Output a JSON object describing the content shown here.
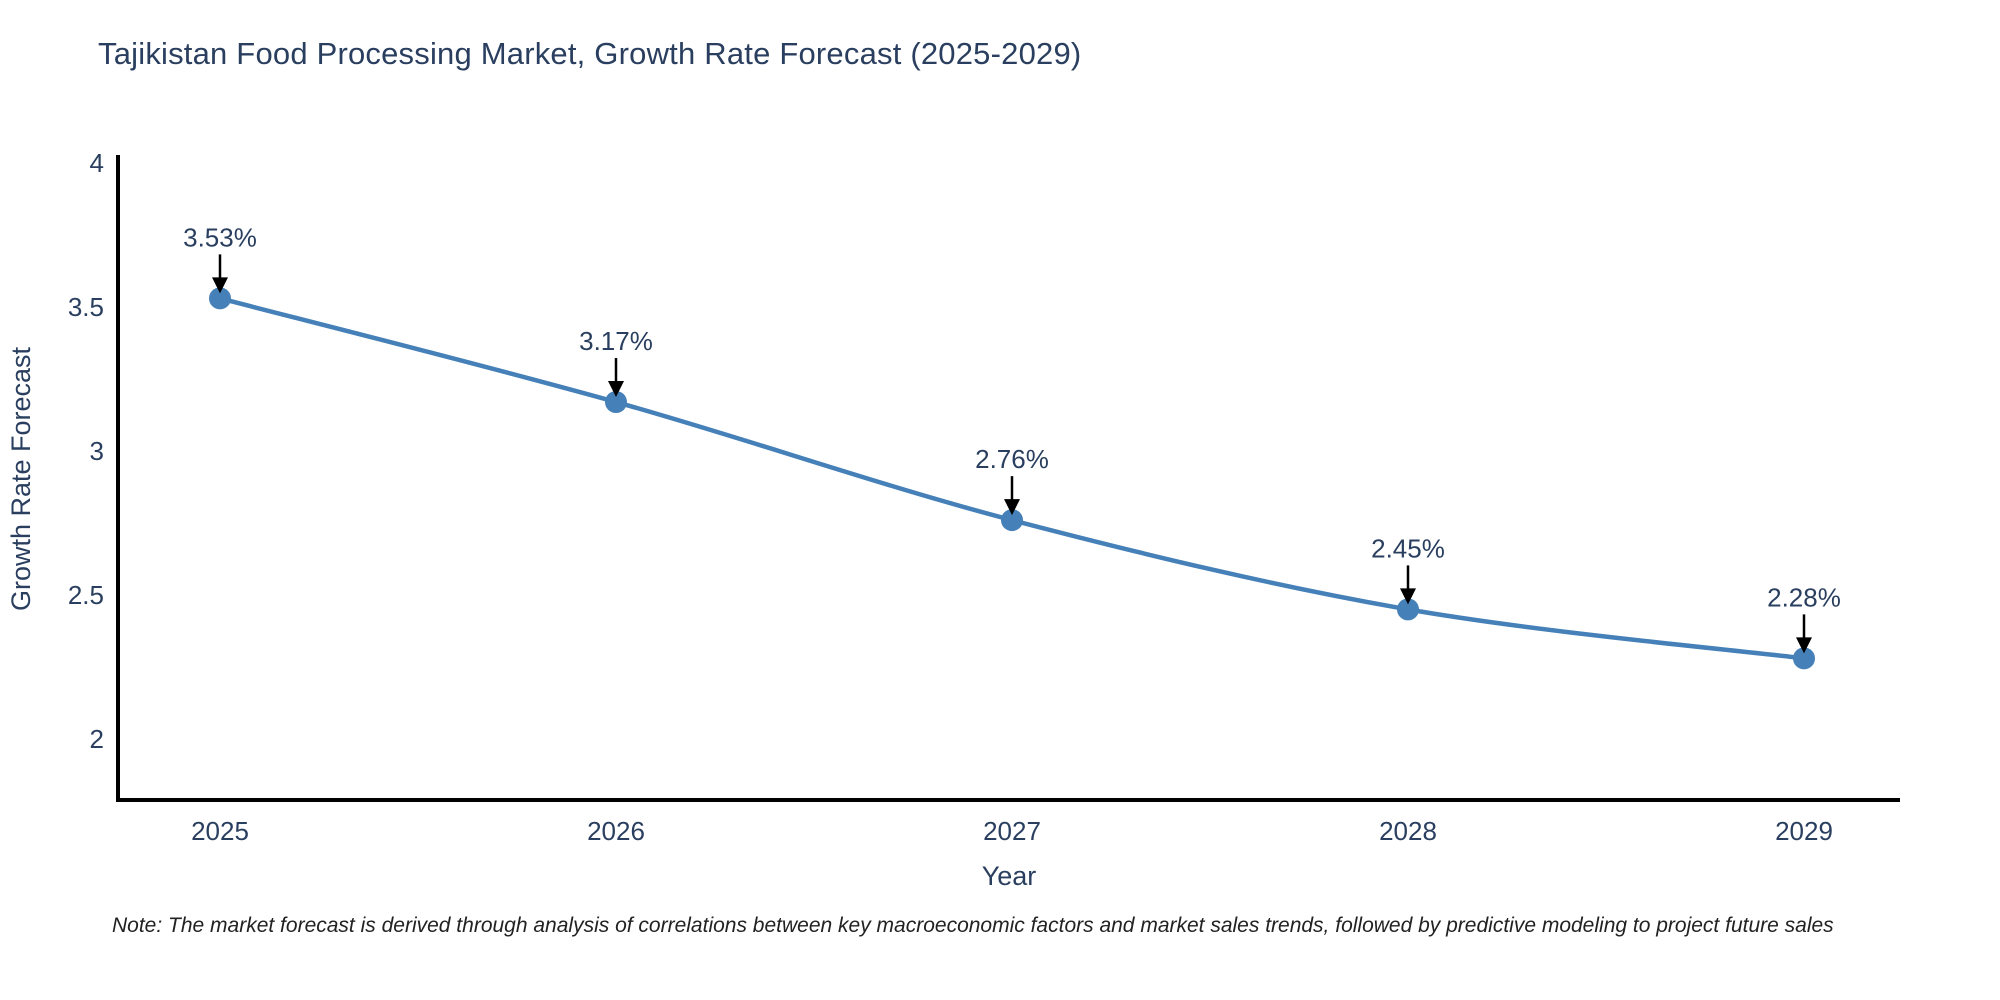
{
  "title": {
    "color": "#2a3f5f"
  },
  "note": {
    "text": "Note: The market forecast is derived through analysis of correlations between key macroeconomic factors and market sales trends, followed by predictive modeling to project future sales"
  },
  "chart_data": {
    "type": "line",
    "title": "Tajikistan Food Processing Market, Growth Rate Forecast (2025-2029)",
    "x": [
      2025,
      2026,
      2027,
      2028,
      2029
    ],
    "y": [
      3.53,
      3.17,
      2.76,
      2.45,
      2.28
    ],
    "point_labels": [
      "3.53%",
      "3.17%",
      "2.76%",
      "2.45%",
      "2.28%"
    ],
    "xtick_labels": [
      "2025",
      "2026",
      "2027",
      "2028",
      "2029"
    ],
    "ytick_labels": [
      "2",
      "2.5",
      "3",
      "3.5",
      "4"
    ],
    "yticks": [
      2,
      2.5,
      3,
      3.5,
      4
    ],
    "ylim": [
      1.79,
      4.02
    ],
    "xlabel": "Year",
    "ylabel": "Growth Rate Forecast",
    "grid": false,
    "legend": "none",
    "line_color": "#4580b8",
    "marker_color": "#4580b8",
    "axis_color": "#000000",
    "annotation_text_color": "#2a3f5f",
    "annotation_arrow_color": "#000000"
  }
}
